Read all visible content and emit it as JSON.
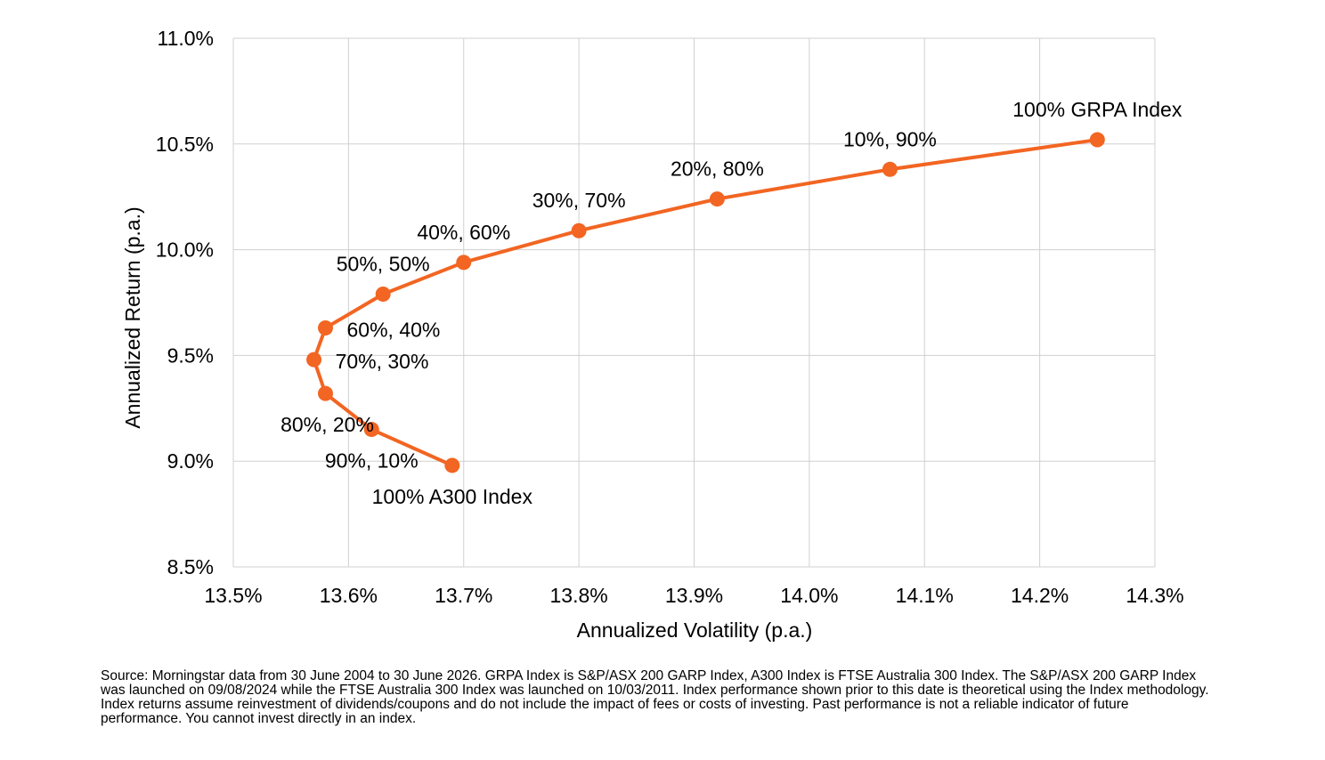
{
  "chart_data": {
    "type": "line",
    "title": "",
    "xlabel": "Annualized Volatility (p.a.)",
    "ylabel": "Annualized Return (p.a.)",
    "xlim": [
      13.5,
      14.3
    ],
    "ylim": [
      8.5,
      11.0
    ],
    "x_ticks": [
      13.5,
      13.6,
      13.7,
      13.8,
      13.9,
      14.0,
      14.1,
      14.2,
      14.3
    ],
    "x_tick_labels": [
      "13.5%",
      "13.6%",
      "13.7%",
      "13.8%",
      "13.9%",
      "14.0%",
      "14.1%",
      "14.2%",
      "14.3%"
    ],
    "y_ticks": [
      8.5,
      9.0,
      9.5,
      10.0,
      10.5,
      11.0
    ],
    "y_tick_labels": [
      "8.5%",
      "9.0%",
      "9.5%",
      "10.0%",
      "10.5%",
      "11.0%"
    ],
    "grid": true,
    "series_color": "#f26522",
    "points": [
      {
        "label": "100% A300 Index",
        "x": 13.69,
        "y": 8.98,
        "label_pos": "below"
      },
      {
        "label": "90%, 10%",
        "x": 13.62,
        "y": 9.15,
        "label_pos": "below"
      },
      {
        "label": "80%, 20%",
        "x": 13.58,
        "y": 9.32,
        "label_pos": "below-right"
      },
      {
        "label": "70%, 30%",
        "x": 13.57,
        "y": 9.48,
        "label_pos": "right"
      },
      {
        "label": "60%, 40%",
        "x": 13.58,
        "y": 9.63,
        "label_pos": "right"
      },
      {
        "label": "50%, 50%",
        "x": 13.63,
        "y": 9.79,
        "label_pos": "above"
      },
      {
        "label": "40%, 60%",
        "x": 13.7,
        "y": 9.94,
        "label_pos": "above"
      },
      {
        "label": "30%, 70%",
        "x": 13.8,
        "y": 10.09,
        "label_pos": "above"
      },
      {
        "label": "20%, 80%",
        "x": 13.92,
        "y": 10.24,
        "label_pos": "above"
      },
      {
        "label": "10%, 90%",
        "x": 14.07,
        "y": 10.38,
        "label_pos": "above"
      },
      {
        "label": "100% GRPA Index",
        "x": 14.25,
        "y": 10.52,
        "label_pos": "above"
      }
    ]
  },
  "source_note": "Source: Morningstar data from 30 June 2004 to 30 June 2026. GRPA Index is S&P/ASX 200 GARP Index, A300 Index is FTSE Australia 300 Index. The S&P/ASX 200 GARP Index was launched on 09/08/2024 while the FTSE Australia 300 Index was launched on 10/03/2011. Index performance shown prior to this date is theoretical using the Index methodology. Index returns assume reinvestment of dividends/coupons and do not include the impact of fees or costs of investing. Past performance is not a reliable indicator of future performance. You cannot invest directly in an index."
}
